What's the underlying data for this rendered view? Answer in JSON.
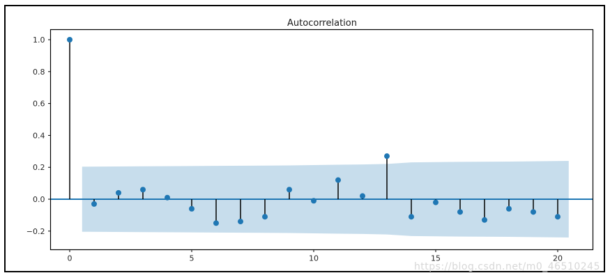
{
  "figure": {
    "watermark": "https://blog.csdn.net/m0_46510245",
    "background": "#ffffff",
    "border_color": "#000000"
  },
  "chart_data": {
    "type": "stem",
    "title": "Autocorrelation",
    "xlabel": "",
    "ylabel": "",
    "x": [
      0,
      1,
      2,
      3,
      4,
      5,
      6,
      7,
      8,
      9,
      10,
      11,
      12,
      13,
      14,
      15,
      16,
      17,
      18,
      19,
      20
    ],
    "values": [
      1.0,
      -0.03,
      0.04,
      0.06,
      0.01,
      -0.06,
      -0.15,
      -0.14,
      -0.11,
      0.06,
      -0.01,
      0.12,
      0.02,
      0.27,
      -0.11,
      -0.02,
      -0.08,
      -0.13,
      -0.06,
      -0.08,
      -0.11
    ],
    "confidence_band": {
      "x": [
        0.51,
        3.0,
        6.0,
        9.0,
        11.0,
        12.0,
        13.0,
        14.0,
        16.0,
        18.0,
        20.45
      ],
      "upper": [
        0.204,
        0.206,
        0.209,
        0.212,
        0.216,
        0.218,
        0.221,
        0.231,
        0.234,
        0.236,
        0.24
      ],
      "lower": [
        -0.204,
        -0.206,
        -0.209,
        -0.212,
        -0.216,
        -0.218,
        -0.221,
        -0.231,
        -0.234,
        -0.236,
        -0.24
      ]
    },
    "xtick_values": [
      0,
      5,
      10,
      15,
      20
    ],
    "xtick_labels": [
      "0",
      "5",
      "10",
      "15",
      "20"
    ],
    "ytick_values": [
      1.0,
      0.8,
      0.6,
      0.4,
      0.2,
      0.0,
      -0.2
    ],
    "ytick_labels": [
      "1.0",
      "0.8",
      "0.6",
      "0.4",
      "0.2",
      "0.0",
      "−0.2"
    ],
    "xlim": [
      -0.79,
      21.44
    ],
    "ylim": [
      -0.317,
      1.063
    ],
    "grid": false,
    "legend": null,
    "zero_line": 0.0,
    "colors": {
      "marker": "#1f77b4",
      "stem": "#000000",
      "zero_line": "#1f77b4",
      "band_fill": "#1f77b4",
      "band_alpha": 0.25,
      "axes": "#000000",
      "tick_label": "#262626",
      "watermark": "#d7d7d7"
    }
  }
}
